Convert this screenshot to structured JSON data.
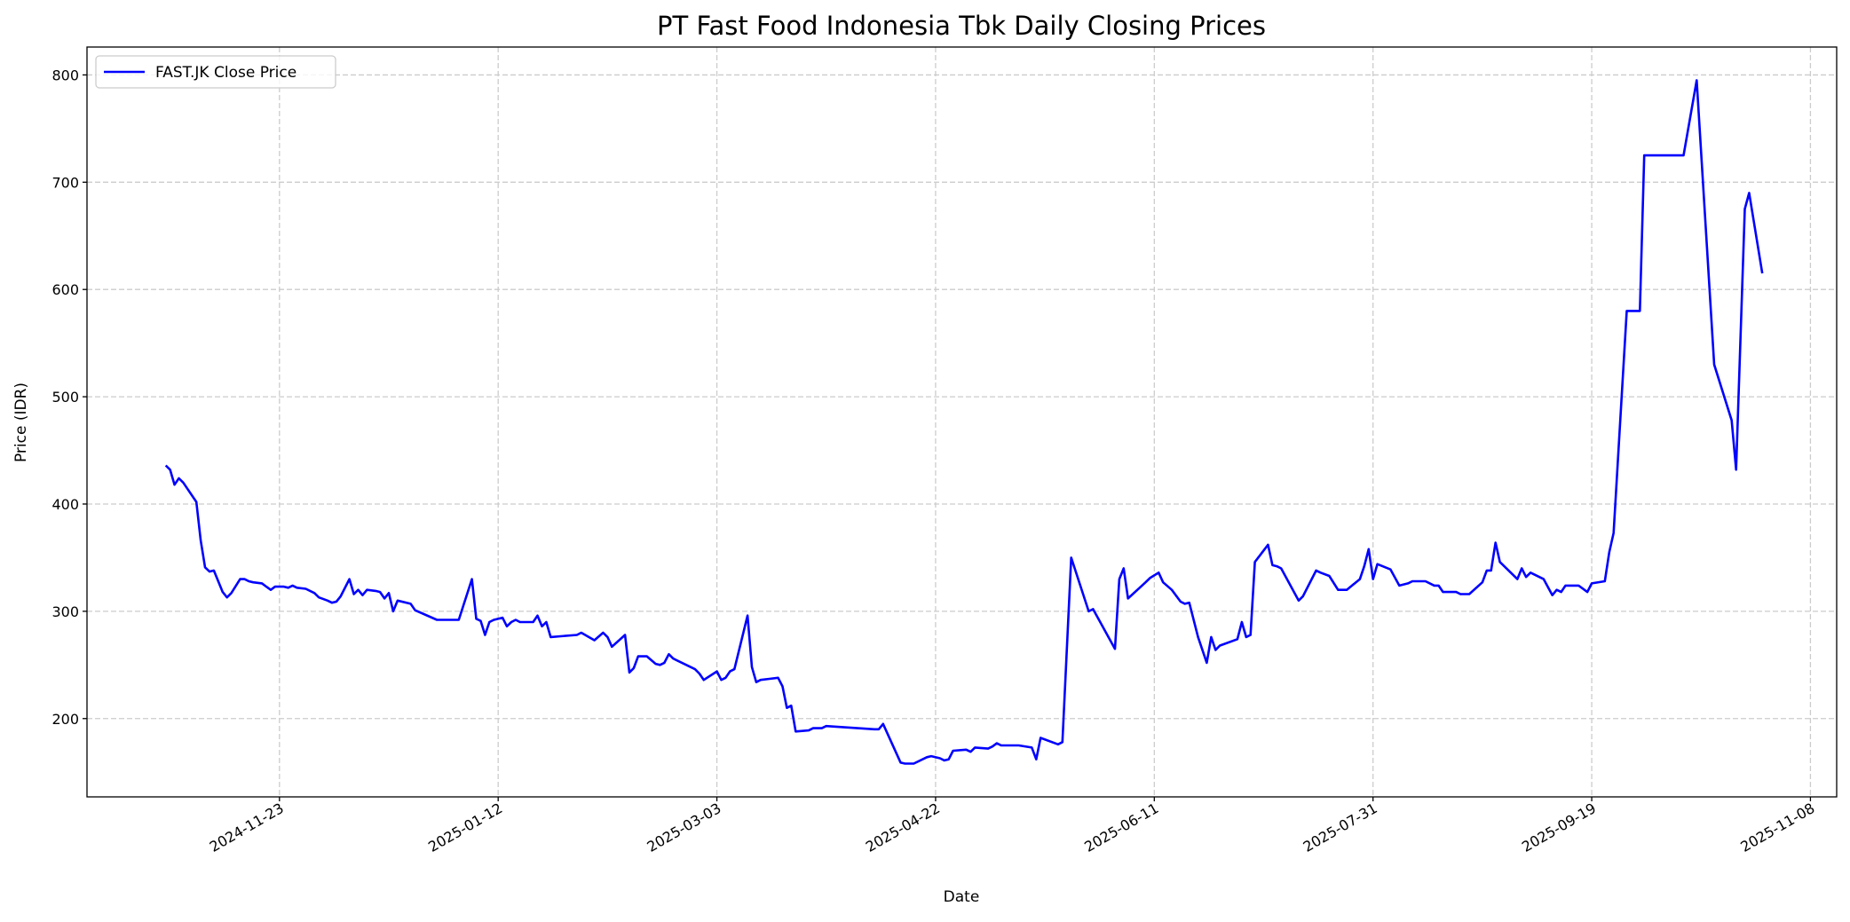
{
  "chart_data": {
    "type": "line",
    "title": "PT Fast Food Indonesia Tbk Daily Closing Prices",
    "xlabel": "Date",
    "ylabel": "Price (IDR)",
    "xlim": [
      "2024-10-10",
      "2025-11-14"
    ],
    "ylim": [
      127,
      826
    ],
    "x_ticks": [
      "2024-11-23",
      "2025-01-12",
      "2025-03-03",
      "2025-04-22",
      "2025-06-11",
      "2025-07-31",
      "2025-09-19",
      "2025-11-08"
    ],
    "y_ticks": [
      200,
      300,
      400,
      500,
      600,
      700,
      800
    ],
    "grid": true,
    "legend": {
      "placement": "top-left",
      "entries": [
        "FAST.JK Close Price"
      ]
    },
    "series": [
      {
        "name": "FAST.JK Close Price",
        "color": "#0000ff",
        "points": [
          [
            "2024-10-28",
            436
          ],
          [
            "2024-10-29",
            432
          ],
          [
            "2024-10-30",
            418
          ],
          [
            "2024-10-31",
            424
          ],
          [
            "2024-11-01",
            420
          ],
          [
            "2024-11-04",
            402
          ],
          [
            "2024-11-05",
            366
          ],
          [
            "2024-11-06",
            341
          ],
          [
            "2024-11-07",
            337
          ],
          [
            "2024-11-08",
            338
          ],
          [
            "2024-11-10",
            318
          ],
          [
            "2024-11-11",
            313
          ],
          [
            "2024-11-12",
            317
          ],
          [
            "2024-11-14",
            330
          ],
          [
            "2024-11-15",
            330
          ],
          [
            "2024-11-16",
            328
          ],
          [
            "2024-11-17",
            327
          ],
          [
            "2024-11-19",
            326
          ],
          [
            "2024-11-20",
            323
          ],
          [
            "2024-11-21",
            320
          ],
          [
            "2024-11-22",
            323
          ],
          [
            "2024-11-24",
            323
          ],
          [
            "2024-11-25",
            322
          ],
          [
            "2024-11-26",
            324
          ],
          [
            "2024-11-27",
            322
          ],
          [
            "2024-11-29",
            321
          ],
          [
            "2024-12-01",
            317
          ],
          [
            "2024-12-02",
            313
          ],
          [
            "2024-12-04",
            310
          ],
          [
            "2024-12-05",
            308
          ],
          [
            "2024-12-06",
            309
          ],
          [
            "2024-12-07",
            314
          ],
          [
            "2024-12-09",
            330
          ],
          [
            "2024-12-10",
            316
          ],
          [
            "2024-12-11",
            320
          ],
          [
            "2024-12-12",
            315
          ],
          [
            "2024-12-13",
            320
          ],
          [
            "2024-12-15",
            319
          ],
          [
            "2024-12-16",
            318
          ],
          [
            "2024-12-17",
            312
          ],
          [
            "2024-12-18",
            317
          ],
          [
            "2024-12-19",
            300
          ],
          [
            "2024-12-20",
            310
          ],
          [
            "2024-12-23",
            307
          ],
          [
            "2024-12-24",
            301
          ],
          [
            "2024-12-29",
            292
          ],
          [
            "2025-01-03",
            292
          ],
          [
            "2025-01-06",
            330
          ],
          [
            "2025-01-07",
            293
          ],
          [
            "2025-01-08",
            291
          ],
          [
            "2025-01-09",
            278
          ],
          [
            "2025-01-10",
            290
          ],
          [
            "2025-01-11",
            292
          ],
          [
            "2025-01-13",
            294
          ],
          [
            "2025-01-14",
            286
          ],
          [
            "2025-01-15",
            290
          ],
          [
            "2025-01-16",
            292
          ],
          [
            "2025-01-17",
            290
          ],
          [
            "2025-01-20",
            290
          ],
          [
            "2025-01-21",
            296
          ],
          [
            "2025-01-22",
            286
          ],
          [
            "2025-01-23",
            290
          ],
          [
            "2025-01-24",
            276
          ],
          [
            "2025-01-30",
            278
          ],
          [
            "2025-01-31",
            280
          ],
          [
            "2025-02-03",
            273
          ],
          [
            "2025-02-05",
            280
          ],
          [
            "2025-02-06",
            276
          ],
          [
            "2025-02-07",
            267
          ],
          [
            "2025-02-10",
            278
          ],
          [
            "2025-02-11",
            243
          ],
          [
            "2025-02-12",
            247
          ],
          [
            "2025-02-13",
            258
          ],
          [
            "2025-02-15",
            258
          ],
          [
            "2025-02-17",
            251
          ],
          [
            "2025-02-18",
            250
          ],
          [
            "2025-02-19",
            252
          ],
          [
            "2025-02-20",
            260
          ],
          [
            "2025-02-21",
            256
          ],
          [
            "2025-02-26",
            246
          ],
          [
            "2025-02-27",
            242
          ],
          [
            "2025-02-28",
            236
          ],
          [
            "2025-03-03",
            244
          ],
          [
            "2025-03-04",
            236
          ],
          [
            "2025-03-05",
            238
          ],
          [
            "2025-03-06",
            244
          ],
          [
            "2025-03-07",
            246
          ],
          [
            "2025-03-10",
            296
          ],
          [
            "2025-03-11",
            248
          ],
          [
            "2025-03-12",
            234
          ],
          [
            "2025-03-13",
            236
          ],
          [
            "2025-03-15",
            237
          ],
          [
            "2025-03-17",
            238
          ],
          [
            "2025-03-18",
            230
          ],
          [
            "2025-03-19",
            210
          ],
          [
            "2025-03-20",
            212
          ],
          [
            "2025-03-21",
            188
          ],
          [
            "2025-03-24",
            189
          ],
          [
            "2025-03-25",
            191
          ],
          [
            "2025-03-27",
            191
          ],
          [
            "2025-03-28",
            193
          ],
          [
            "2025-04-08",
            190
          ],
          [
            "2025-04-09",
            190
          ],
          [
            "2025-04-10",
            195
          ],
          [
            "2025-04-14",
            159
          ],
          [
            "2025-04-15",
            158
          ],
          [
            "2025-04-17",
            158
          ],
          [
            "2025-04-20",
            164
          ],
          [
            "2025-04-21",
            165
          ],
          [
            "2025-04-23",
            163
          ],
          [
            "2025-04-24",
            161
          ],
          [
            "2025-04-25",
            162
          ],
          [
            "2025-04-26",
            170
          ],
          [
            "2025-04-29",
            171
          ],
          [
            "2025-04-30",
            169
          ],
          [
            "2025-05-01",
            173
          ],
          [
            "2025-05-04",
            172
          ],
          [
            "2025-05-05",
            174
          ],
          [
            "2025-05-06",
            177
          ],
          [
            "2025-05-07",
            175
          ],
          [
            "2025-05-11",
            175
          ],
          [
            "2025-05-14",
            173
          ],
          [
            "2025-05-15",
            162
          ],
          [
            "2025-05-16",
            182
          ],
          [
            "2025-05-20",
            176
          ],
          [
            "2025-05-21",
            178
          ],
          [
            "2025-05-23",
            350
          ],
          [
            "2025-05-27",
            300
          ],
          [
            "2025-05-28",
            302
          ],
          [
            "2025-06-02",
            265
          ],
          [
            "2025-06-03",
            330
          ],
          [
            "2025-06-04",
            340
          ],
          [
            "2025-06-05",
            312
          ],
          [
            "2025-06-09",
            327
          ],
          [
            "2025-06-10",
            331
          ],
          [
            "2025-06-12",
            336
          ],
          [
            "2025-06-13",
            327
          ],
          [
            "2025-06-15",
            320
          ],
          [
            "2025-06-17",
            309
          ],
          [
            "2025-06-18",
            307
          ],
          [
            "2025-06-19",
            308
          ],
          [
            "2025-06-21",
            276
          ],
          [
            "2025-06-23",
            252
          ],
          [
            "2025-06-24",
            276
          ],
          [
            "2025-06-25",
            264
          ],
          [
            "2025-06-26",
            268
          ],
          [
            "2025-06-30",
            274
          ],
          [
            "2025-07-01",
            290
          ],
          [
            "2025-07-02",
            276
          ],
          [
            "2025-07-03",
            278
          ],
          [
            "2025-07-04",
            346
          ],
          [
            "2025-07-07",
            362
          ],
          [
            "2025-07-08",
            343
          ],
          [
            "2025-07-09",
            342
          ],
          [
            "2025-07-10",
            340
          ],
          [
            "2025-07-14",
            310
          ],
          [
            "2025-07-15",
            314
          ],
          [
            "2025-07-18",
            338
          ],
          [
            "2025-07-19",
            336
          ],
          [
            "2025-07-21",
            333
          ],
          [
            "2025-07-23",
            320
          ],
          [
            "2025-07-25",
            320
          ],
          [
            "2025-07-28",
            330
          ],
          [
            "2025-07-29",
            342
          ],
          [
            "2025-07-30",
            358
          ],
          [
            "2025-07-31",
            330
          ],
          [
            "2025-08-01",
            344
          ],
          [
            "2025-08-04",
            339
          ],
          [
            "2025-08-06",
            324
          ],
          [
            "2025-08-08",
            326
          ],
          [
            "2025-08-09",
            328
          ],
          [
            "2025-08-12",
            328
          ],
          [
            "2025-08-14",
            324
          ],
          [
            "2025-08-15",
            324
          ],
          [
            "2025-08-16",
            318
          ],
          [
            "2025-08-19",
            318
          ],
          [
            "2025-08-20",
            316
          ],
          [
            "2025-08-22",
            316
          ],
          [
            "2025-08-25",
            327
          ],
          [
            "2025-08-26",
            338
          ],
          [
            "2025-08-27",
            338
          ],
          [
            "2025-08-28",
            364
          ],
          [
            "2025-08-29",
            346
          ],
          [
            "2025-09-02",
            330
          ],
          [
            "2025-09-03",
            340
          ],
          [
            "2025-09-04",
            332
          ],
          [
            "2025-09-05",
            336
          ],
          [
            "2025-09-08",
            330
          ],
          [
            "2025-09-10",
            315
          ],
          [
            "2025-09-11",
            320
          ],
          [
            "2025-09-12",
            318
          ],
          [
            "2025-09-13",
            324
          ],
          [
            "2025-09-16",
            324
          ],
          [
            "2025-09-18",
            318
          ],
          [
            "2025-09-19",
            326
          ],
          [
            "2025-09-22",
            328
          ],
          [
            "2025-09-23",
            355
          ],
          [
            "2025-09-24",
            373
          ],
          [
            "2025-09-27",
            580
          ],
          [
            "2025-09-30",
            580
          ],
          [
            "2025-10-01",
            725
          ],
          [
            "2025-10-10",
            725
          ],
          [
            "2025-10-13",
            795
          ],
          [
            "2025-10-17",
            530
          ],
          [
            "2025-10-21",
            478
          ],
          [
            "2025-10-22",
            432
          ],
          [
            "2025-10-24",
            675
          ],
          [
            "2025-10-25",
            690
          ],
          [
            "2025-10-28",
            615
          ]
        ]
      }
    ]
  }
}
